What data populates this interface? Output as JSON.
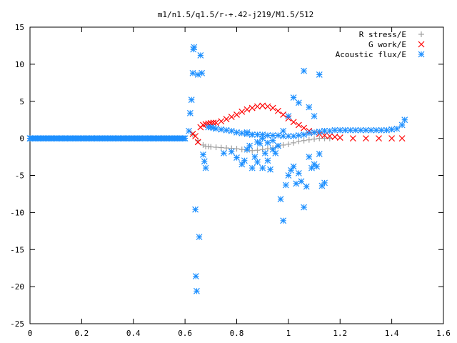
{
  "chart_data": {
    "type": "scatter",
    "title": "m1/n1.5/q1.5/r-+.42-j219/M1.5/512",
    "xlabel": "",
    "ylabel": "",
    "xlim": [
      0,
      1.6
    ],
    "ylim": [
      -25,
      15
    ],
    "xticks": [
      0,
      0.2,
      0.4,
      0.6,
      0.8,
      1,
      1.2,
      1.4,
      1.6
    ],
    "xtick_labels": [
      "0",
      "0.2",
      "0.4",
      "0.6",
      "0.8",
      "1",
      "1.2",
      "1.4",
      "1.6"
    ],
    "yticks": [
      -25,
      -20,
      -15,
      -10,
      -5,
      0,
      5,
      10,
      15
    ],
    "ytick_labels": [
      "-25",
      "-20",
      "-15",
      "-10",
      "-5",
      "0",
      "5",
      "10",
      "15"
    ],
    "grid": false,
    "legend_position": "top-right",
    "series": [
      {
        "name": "R stress/E",
        "marker": "plus",
        "color": "#a0a0a0",
        "x": [
          0.63,
          0.65,
          0.67,
          0.68,
          0.69,
          0.7,
          0.72,
          0.74,
          0.76,
          0.78,
          0.8,
          0.82,
          0.84,
          0.86,
          0.88,
          0.9,
          0.92,
          0.94,
          0.96,
          0.98,
          1.0,
          1.02,
          1.04,
          1.06,
          1.08,
          1.1,
          1.12,
          1.14,
          1.16
        ],
        "y": [
          0.5,
          -0.3,
          -0.9,
          -1.1,
          -1.1,
          -1.15,
          -1.2,
          -1.25,
          -1.3,
          -1.35,
          -1.4,
          -1.5,
          -1.6,
          -1.65,
          -1.6,
          -1.5,
          -1.4,
          -1.3,
          -1.1,
          -0.9,
          -0.8,
          -0.6,
          -0.4,
          -0.3,
          -0.2,
          -0.1,
          0.0,
          0.0,
          0.0
        ]
      },
      {
        "name": "G work/E",
        "marker": "cross",
        "color": "#ff0000",
        "x": [
          0.63,
          0.64,
          0.65,
          0.66,
          0.67,
          0.68,
          0.69,
          0.7,
          0.71,
          0.72,
          0.74,
          0.76,
          0.78,
          0.8,
          0.82,
          0.84,
          0.86,
          0.88,
          0.9,
          0.92,
          0.94,
          0.96,
          0.98,
          1.0,
          1.02,
          1.04,
          1.06,
          1.08,
          1.1,
          1.12,
          1.14,
          1.16,
          1.18,
          1.2,
          1.25,
          1.3,
          1.35,
          1.4,
          1.44
        ],
        "y": [
          0.6,
          0.3,
          -0.5,
          1.5,
          1.8,
          1.9,
          2.0,
          2.05,
          2.1,
          2.1,
          2.3,
          2.6,
          2.9,
          3.2,
          3.6,
          3.9,
          4.1,
          4.3,
          4.4,
          4.3,
          4.1,
          3.7,
          3.2,
          2.7,
          2.2,
          1.8,
          1.4,
          1.0,
          0.8,
          0.6,
          0.4,
          0.3,
          0.2,
          0.1,
          0.0,
          0.0,
          0.0,
          0.0,
          0.0
        ]
      },
      {
        "name": "Acoustic flux/E",
        "marker": "star",
        "color": "#1e90ff",
        "x": [
          0.0,
          0.02,
          0.04,
          0.06,
          0.08,
          0.1,
          0.12,
          0.14,
          0.16,
          0.18,
          0.2,
          0.22,
          0.24,
          0.26,
          0.28,
          0.3,
          0.32,
          0.34,
          0.36,
          0.38,
          0.4,
          0.42,
          0.44,
          0.46,
          0.48,
          0.5,
          0.52,
          0.54,
          0.56,
          0.58,
          0.6,
          0.615,
          0.62,
          0.625,
          0.63,
          0.632,
          0.635,
          0.64,
          0.642,
          0.645,
          0.65,
          0.655,
          0.66,
          0.665,
          0.67,
          0.675,
          0.68,
          0.69,
          0.7,
          0.71,
          0.72,
          0.74,
          0.76,
          0.78,
          0.8,
          0.82,
          0.84,
          0.86,
          0.88,
          0.9,
          0.92,
          0.94,
          0.96,
          0.98,
          1.0,
          1.02,
          1.04,
          1.06,
          1.08,
          1.1,
          1.12,
          1.14,
          1.16,
          1.18,
          1.2,
          1.22,
          1.24,
          1.26,
          1.28,
          1.3,
          1.32,
          1.34,
          1.36,
          1.38,
          1.4,
          1.42,
          1.44,
          1.45,
          0.75,
          0.78,
          0.8,
          0.82,
          0.83,
          0.84,
          0.85,
          0.86,
          0.87,
          0.88,
          0.89,
          0.9,
          0.91,
          0.92,
          0.93,
          0.94,
          0.95,
          0.96,
          0.97,
          0.98,
          0.99,
          1.0,
          1.01,
          1.02,
          1.03,
          1.04,
          1.05,
          1.06,
          1.07,
          1.08,
          1.09,
          1.1,
          1.11,
          1.12,
          1.13,
          1.14,
          0.84,
          0.86,
          0.88,
          0.9,
          0.92,
          0.94,
          0.96,
          0.98,
          1.0,
          1.02,
          1.04,
          1.06,
          1.08,
          1.1,
          1.12,
          1.14
        ],
        "y": [
          0,
          0,
          0,
          0,
          0,
          0,
          0,
          0,
          0,
          0,
          0,
          0,
          0,
          0,
          0,
          0,
          0,
          0,
          0,
          0,
          0,
          0,
          0,
          0,
          0,
          0,
          0,
          0,
          0,
          0,
          0,
          1.0,
          3.4,
          5.2,
          8.8,
          12.0,
          12.3,
          -9.6,
          -18.6,
          -20.6,
          8.6,
          -13.3,
          11.2,
          8.8,
          -2.2,
          -3.1,
          -4.0,
          1.5,
          1.5,
          1.4,
          1.3,
          1.2,
          1.1,
          1.0,
          0.8,
          0.7,
          0.6,
          0.5,
          0.5,
          0.5,
          0.4,
          0.4,
          0.4,
          0.3,
          0.3,
          0.3,
          0.4,
          0.5,
          0.7,
          0.8,
          0.9,
          1.0,
          1.0,
          1.1,
          1.1,
          1.1,
          1.1,
          1.1,
          1.1,
          1.1,
          1.1,
          1.1,
          1.1,
          1.1,
          1.2,
          1.3,
          1.8,
          2.5,
          -2.0,
          -1.8,
          -2.6,
          -3.5,
          -3.0,
          -1.5,
          -1.0,
          -4.0,
          -2.5,
          -3.2,
          -0.7,
          -4.0,
          -2.0,
          -3.0,
          -4.2,
          -1.5,
          -2.0,
          -1.0,
          -8.2,
          -11.1,
          -6.3,
          -5.0,
          -4.3,
          -3.8,
          -6.1,
          -4.7,
          -5.8,
          -9.3,
          -6.5,
          -2.5,
          -4.0,
          -3.5,
          -3.8,
          -2.1,
          -6.4,
          -6.0,
          0.8,
          0.5,
          -0.5,
          0.0,
          -0.6,
          -0.3,
          -1.0,
          1.0,
          3.0,
          5.5,
          4.8,
          9.1,
          4.2,
          3.0,
          8.6,
          1.0
        ]
      }
    ]
  }
}
